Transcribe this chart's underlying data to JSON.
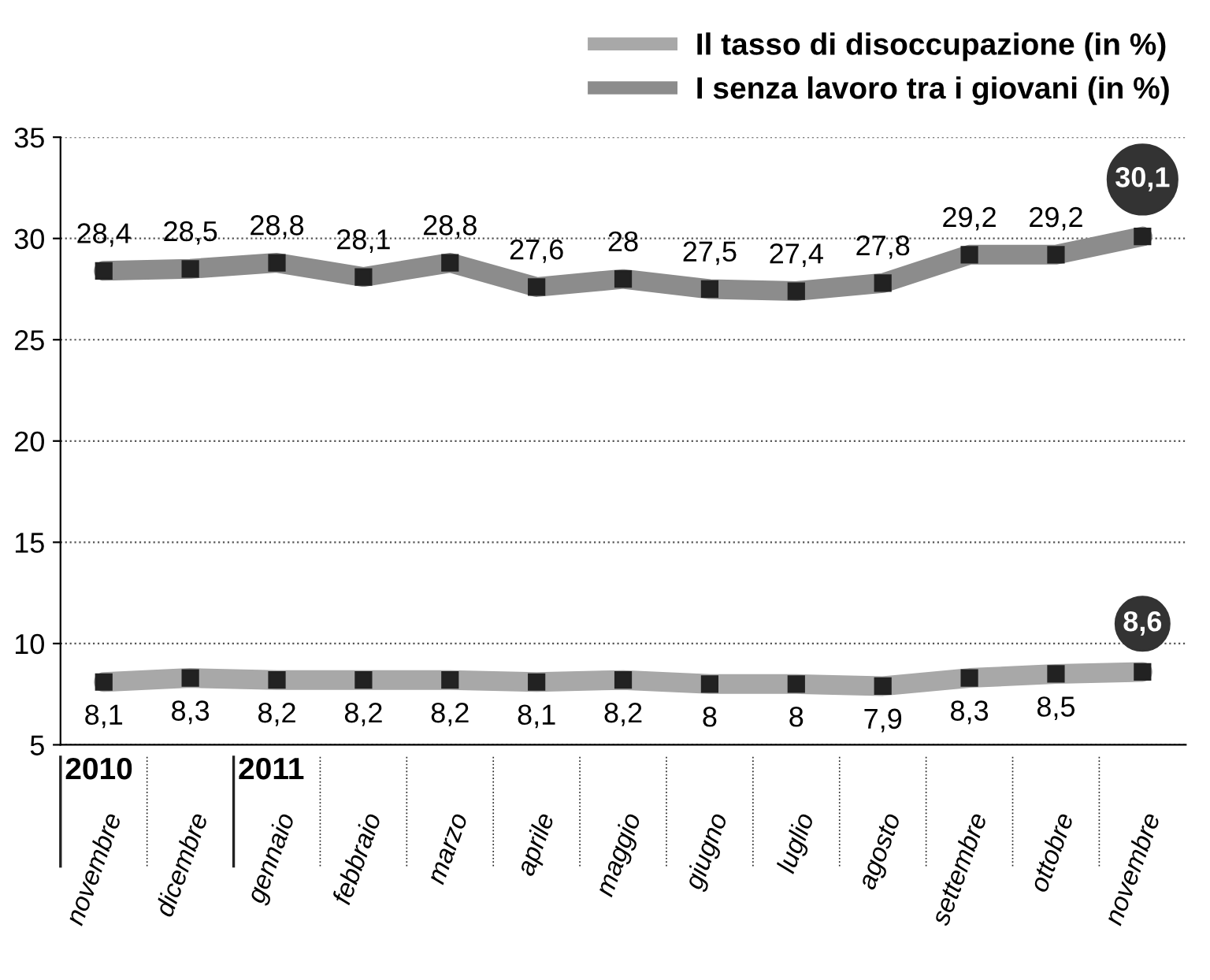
{
  "chart_data": {
    "type": "line",
    "categories": [
      "novembre",
      "dicembre",
      "gennaio",
      "febbraio",
      "marzo",
      "aprile",
      "maggio",
      "giugno",
      "luglio",
      "agosto",
      "settembre",
      "ottobre",
      "novembre"
    ],
    "series": [
      {
        "name": "Il tasso di disoccupazione (in %)",
        "color": "#a8a8a8",
        "values": [
          8.1,
          8.3,
          8.2,
          8.2,
          8.2,
          8.1,
          8.2,
          8,
          8,
          7.9,
          8.3,
          8.5,
          8.6
        ],
        "value_labels": [
          "8,1",
          "8,3",
          "8,2",
          "8,2",
          "8,2",
          "8,1",
          "8,2",
          "8",
          "8",
          "7,9",
          "8,3",
          "8,5",
          "8,6"
        ]
      },
      {
        "name": "I senza lavoro tra i giovani (in %)",
        "color": "#8c8c8c",
        "values": [
          28.4,
          28.5,
          28.8,
          28.1,
          28.8,
          27.6,
          28,
          27.5,
          27.4,
          27.8,
          29.2,
          29.2,
          30.1
        ],
        "value_labels": [
          "28,4",
          "28,5",
          "28,8",
          "28,1",
          "28,8",
          "27,6",
          "28",
          "27,5",
          "27,4",
          "27,8",
          "29,2",
          "29,2",
          "30,1"
        ]
      }
    ],
    "ylim": [
      5,
      35
    ],
    "yticks": [
      5,
      10,
      15,
      20,
      25,
      30,
      35
    ],
    "grid": "y",
    "legend": "top right",
    "marker": "square",
    "line_style": "solid",
    "annotations": [
      "2010",
      "2011"
    ]
  }
}
